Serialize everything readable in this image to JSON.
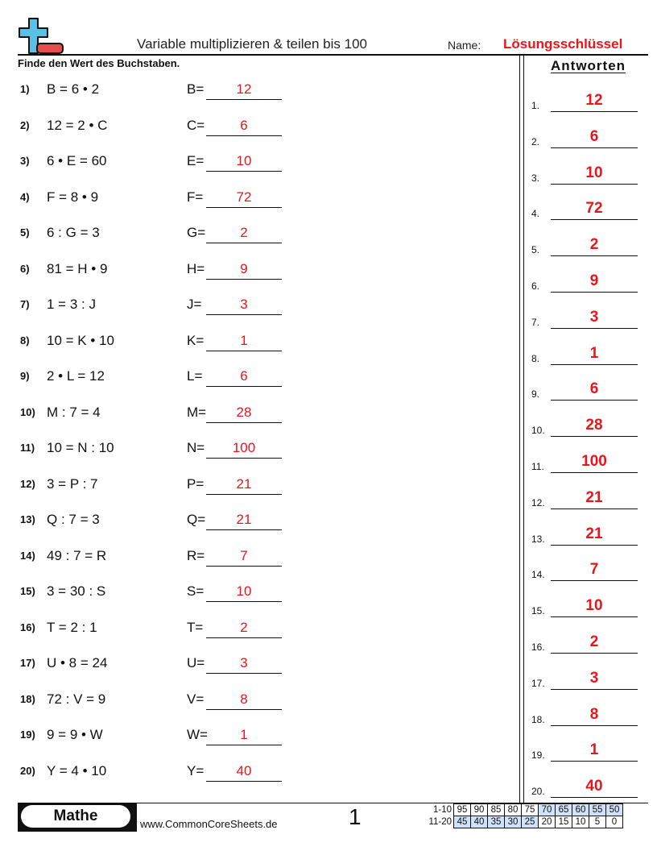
{
  "header": {
    "title": "Variable multiplizieren & teilen bis 100",
    "name_label": "Name:",
    "name_value": "Lösungsschlüssel",
    "instructions": "Finde den Wert des Buchstaben.",
    "logo_icon": "plus-minus-logo-icon"
  },
  "answers_header": "Antworten",
  "problems": [
    {
      "num": "1)",
      "eq": "B = 6 • 2",
      "var": "B=",
      "ans": "12"
    },
    {
      "num": "2)",
      "eq": "12 = 2 • C",
      "var": "C=",
      "ans": "6"
    },
    {
      "num": "3)",
      "eq": "6 • E = 60",
      "var": "E=",
      "ans": "10"
    },
    {
      "num": "4)",
      "eq": "F = 8 • 9",
      "var": "F=",
      "ans": "72"
    },
    {
      "num": "5)",
      "eq": "6 : G = 3",
      "var": "G=",
      "ans": "2"
    },
    {
      "num": "6)",
      "eq": "81 = H • 9",
      "var": "H=",
      "ans": "9"
    },
    {
      "num": "7)",
      "eq": "1 = 3 : J",
      "var": "J=",
      "ans": "3"
    },
    {
      "num": "8)",
      "eq": "10 = K • 10",
      "var": "K=",
      "ans": "1"
    },
    {
      "num": "9)",
      "eq": "2 • L = 12",
      "var": "L=",
      "ans": "6"
    },
    {
      "num": "10)",
      "eq": "M : 7 = 4",
      "var": "M=",
      "ans": "28"
    },
    {
      "num": "11)",
      "eq": "10 = N : 10",
      "var": "N=",
      "ans": "100"
    },
    {
      "num": "12)",
      "eq": "3 = P : 7",
      "var": "P=",
      "ans": "21"
    },
    {
      "num": "13)",
      "eq": "Q : 7 = 3",
      "var": "Q=",
      "ans": "21"
    },
    {
      "num": "14)",
      "eq": "49 : 7 = R",
      "var": "R=",
      "ans": "7"
    },
    {
      "num": "15)",
      "eq": "3 = 30 : S",
      "var": "S=",
      "ans": "10"
    },
    {
      "num": "16)",
      "eq": "T = 2 : 1",
      "var": "T=",
      "ans": "2"
    },
    {
      "num": "17)",
      "eq": "U • 8 = 24",
      "var": "U=",
      "ans": "3"
    },
    {
      "num": "18)",
      "eq": "72 : V = 9",
      "var": "V=",
      "ans": "8"
    },
    {
      "num": "19)",
      "eq": "9 = 9 • W",
      "var": "W=",
      "ans": "1"
    },
    {
      "num": "20)",
      "eq": "Y = 4 • 10",
      "var": "Y=",
      "ans": "40"
    }
  ],
  "key": [
    {
      "num": "1.",
      "ans": "12"
    },
    {
      "num": "2.",
      "ans": "6"
    },
    {
      "num": "3.",
      "ans": "10"
    },
    {
      "num": "4.",
      "ans": "72"
    },
    {
      "num": "5.",
      "ans": "2"
    },
    {
      "num": "6.",
      "ans": "9"
    },
    {
      "num": "7.",
      "ans": "3"
    },
    {
      "num": "8.",
      "ans": "1"
    },
    {
      "num": "9.",
      "ans": "6"
    },
    {
      "num": "10.",
      "ans": "28"
    },
    {
      "num": "11.",
      "ans": "100"
    },
    {
      "num": "12.",
      "ans": "21"
    },
    {
      "num": "13.",
      "ans": "21"
    },
    {
      "num": "14.",
      "ans": "7"
    },
    {
      "num": "15.",
      "ans": "10"
    },
    {
      "num": "16.",
      "ans": "2"
    },
    {
      "num": "17.",
      "ans": "3"
    },
    {
      "num": "18.",
      "ans": "8"
    },
    {
      "num": "19.",
      "ans": "1"
    },
    {
      "num": "20.",
      "ans": "40"
    }
  ],
  "footer": {
    "subject": "Mathe",
    "site": "www.CommonCoreSheets.de",
    "page": "1",
    "score_rows": [
      {
        "label": "1-10",
        "cells": [
          "95",
          "90",
          "85",
          "80",
          "75",
          "70",
          "65",
          "60",
          "55",
          "50"
        ],
        "highlight": [
          5,
          6,
          7,
          8,
          9
        ]
      },
      {
        "label": "11-20",
        "cells": [
          "45",
          "40",
          "35",
          "30",
          "25",
          "20",
          "15",
          "10",
          "5",
          "0"
        ],
        "highlight": [
          0,
          1,
          2,
          3,
          4
        ]
      }
    ]
  },
  "colors": {
    "answer_red": "#e8151b",
    "score_highlight": "#cfe2f9",
    "logo_blue": "#5bc0e6",
    "logo_red": "#e84b4b"
  }
}
